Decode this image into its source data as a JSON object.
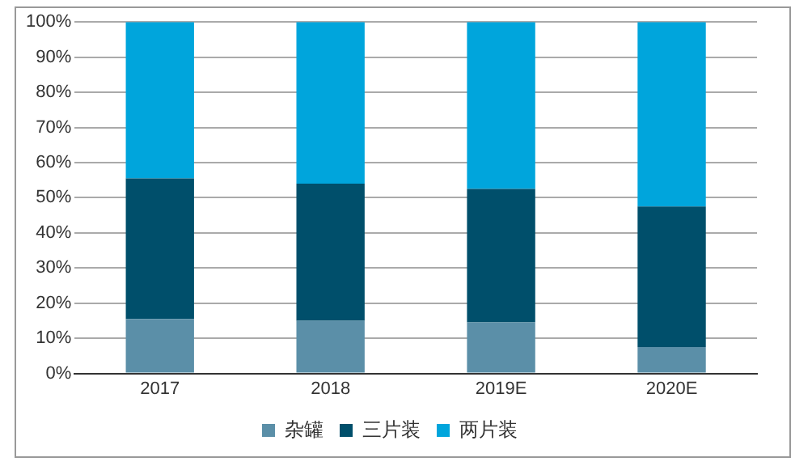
{
  "chart_data": {
    "type": "bar",
    "stacked": true,
    "categories": [
      "2017",
      "2018",
      "2019E",
      "2020E"
    ],
    "series": [
      {
        "name": "杂罐",
        "color": "#5b8fa8",
        "values": [
          15.5,
          15,
          14.5,
          7.5
        ]
      },
      {
        "name": "三片装",
        "color": "#004f6b",
        "values": [
          40,
          39,
          38,
          40
        ]
      },
      {
        "name": "两片装",
        "color": "#00a5dc",
        "values": [
          44.5,
          46,
          47.5,
          52.5
        ]
      }
    ],
    "ylim": [
      0,
      100
    ],
    "yticks": [
      {
        "value": 0,
        "label": "0%"
      },
      {
        "value": 10,
        "label": "10%"
      },
      {
        "value": 20,
        "label": "20%"
      },
      {
        "value": 30,
        "label": "30%"
      },
      {
        "value": 40,
        "label": "40%"
      },
      {
        "value": 50,
        "label": "50%"
      },
      {
        "value": 60,
        "label": "60%"
      },
      {
        "value": 70,
        "label": "70%"
      },
      {
        "value": 80,
        "label": "80%"
      },
      {
        "value": 90,
        "label": "90%"
      },
      {
        "value": 100,
        "label": "100%"
      }
    ],
    "grid": "y",
    "legend": "bottom"
  }
}
